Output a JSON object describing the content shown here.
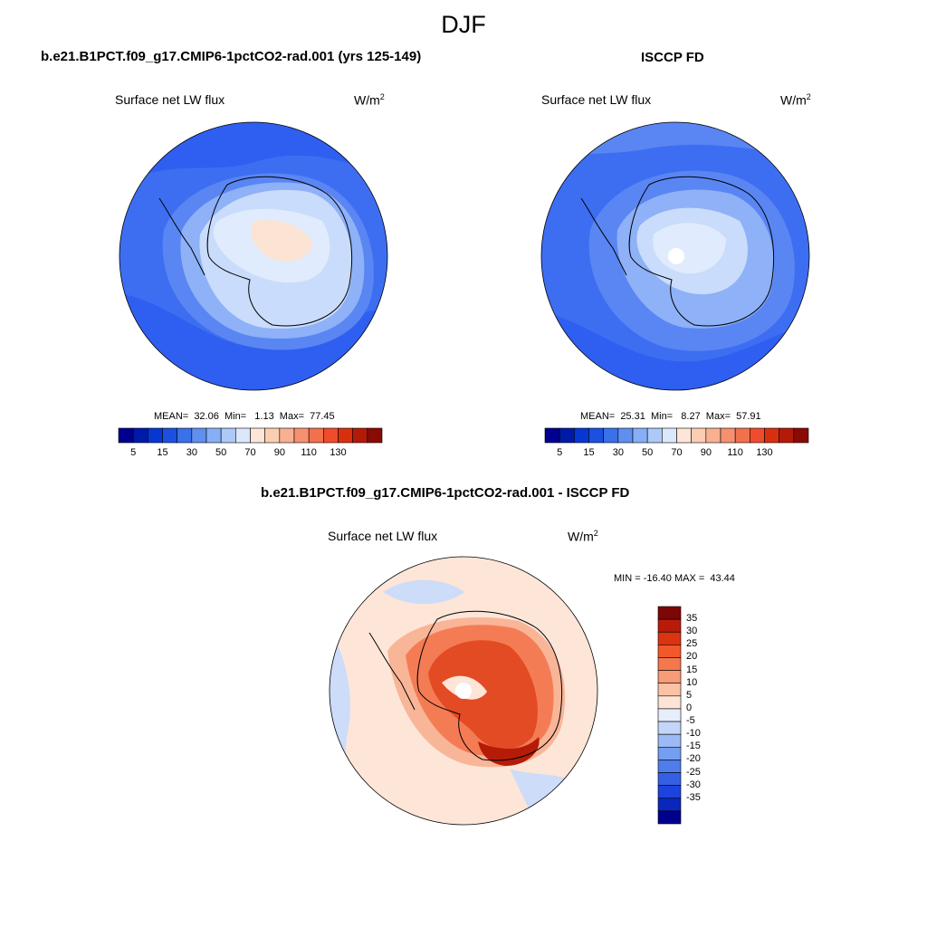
{
  "page": {
    "title": "DJF"
  },
  "palette_20": [
    "#00008f",
    "#001aa8",
    "#0737d3",
    "#1c50e0",
    "#3a70e8",
    "#5f90f0",
    "#86aff5",
    "#adc9f8",
    "#d3e3fb",
    "#fbe7d6",
    "#fbd0b4",
    "#f8b191",
    "#f6916f",
    "#f2714d",
    "#ef4c2d",
    "#db3115",
    "#bd1f08",
    "#9c1105",
    "#7d0606"
  ],
  "panels": {
    "model": {
      "title": "b.e21.B1PCT.f09_g17.CMIP6-1pctCO2-rad.001 (yrs 125-149)",
      "variable": "Surface net LW flux",
      "units": "W/m",
      "units_exp": "2",
      "stats": "MEAN=  32.06  Min=   1.13  Max=  77.45",
      "mean": 32.06,
      "min": 1.13,
      "max": 77.45
    },
    "obs": {
      "title": "ISCCP FD",
      "variable": "Surface net LW flux",
      "units": "W/m",
      "units_exp": "2",
      "stats": "MEAN=  25.31  Min=   8.27  Max=  57.91",
      "mean": 25.31,
      "min": 8.27,
      "max": 57.91
    },
    "diff": {
      "title": "b.e21.B1PCT.f09_g17.CMIP6-1pctCO2-rad.001 - ISCCP FD",
      "variable": "Surface net LW flux",
      "units": "W/m",
      "units_exp": "2",
      "stats": "MIN = -16.40 MAX =  43.44",
      "min": -16.4,
      "max": 43.44
    }
  },
  "colorbar_abs": {
    "colors": [
      "#00008f",
      "#001aa8",
      "#0737d3",
      "#1c50e0",
      "#3a70e8",
      "#5f90f0",
      "#86aff5",
      "#adc9f8",
      "#dbe8fb",
      "#fde6d8",
      "#fbcdb2",
      "#f8b091",
      "#f6916f",
      "#f2714d",
      "#ef4c2d",
      "#d8300f",
      "#b41a08",
      "#8a0a04"
    ],
    "tick_labels": [
      "5",
      "15",
      "30",
      "50",
      "70",
      "90",
      "110",
      "130"
    ]
  },
  "colorbar_diff": {
    "colors_top_to_bottom": [
      "#7d0606",
      "#b81c08",
      "#dc3311",
      "#f2582c",
      "#f4784d",
      "#f89b79",
      "#fbc2a6",
      "#fde4d6",
      "#e6eefb",
      "#c4d6f8",
      "#9cbbf5",
      "#749ef0",
      "#4f7deb",
      "#3560e6",
      "#1c43dc",
      "#0a26bd",
      "#00008f"
    ],
    "tick_labels": [
      "35",
      "30",
      "25",
      "20",
      "15",
      "10",
      "5",
      "0",
      "-5",
      "-10",
      "-15",
      "-20",
      "-25",
      "-30",
      "-35"
    ]
  },
  "map_colors": {
    "ocean_dark": "#2f5ff0",
    "ocean_mid": "#3d6ef2",
    "ocean_light": "#5a86f3",
    "ice_shelf": "#8eb1f7",
    "ice_light": "#c9dcfb",
    "ice_pale": "#e0ebfd",
    "warm_pale": "#fbe4d4",
    "diff_bg": "#fde6d8",
    "diff_cool": "#cddcf8",
    "diff_w1": "#f9b598",
    "diff_w2": "#f47c55",
    "diff_w3": "#e34b24",
    "diff_w4": "#b51c08"
  }
}
